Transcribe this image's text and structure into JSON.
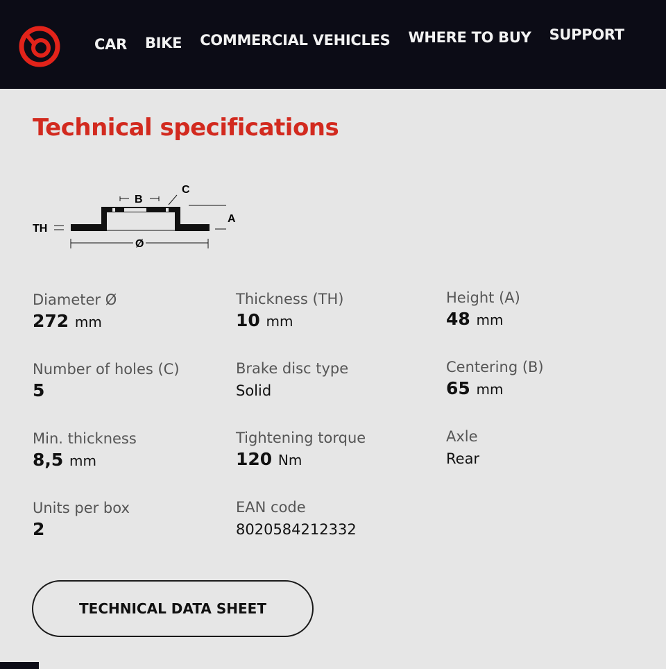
{
  "brand": {
    "name": "Brembo",
    "color": "#e2231a"
  },
  "nav": [
    {
      "label": "CAR"
    },
    {
      "label": "BIKE"
    },
    {
      "label": "COMMERCIAL VEHICLES"
    },
    {
      "label": "WHERE TO BUY"
    },
    {
      "label": "SUPPORT"
    }
  ],
  "title": "Technical specifications",
  "diagram": {
    "labels": {
      "b": "B",
      "c": "C",
      "a": "A",
      "th": "TH",
      "dia": "Ø"
    }
  },
  "specs": [
    {
      "label": "Diameter Ø",
      "value": "272",
      "unit": "mm"
    },
    {
      "label": "Thickness (TH)",
      "value": "10",
      "unit": "mm"
    },
    {
      "label": "Height (A)",
      "value": "48",
      "unit": "mm"
    },
    {
      "label": "Number of holes (C)",
      "value": "5",
      "unit": ""
    },
    {
      "label": "Brake disc type",
      "value": "Solid",
      "unit": ""
    },
    {
      "label": "Centering (B)",
      "value": "65",
      "unit": "mm"
    },
    {
      "label": "Min. thickness",
      "value": "8,5",
      "unit": "mm"
    },
    {
      "label": "Tightening torque",
      "value": "120",
      "unit": "Nm"
    },
    {
      "label": "Axle",
      "value": "Rear",
      "unit": ""
    },
    {
      "label": "Units per box",
      "value": "2",
      "unit": ""
    },
    {
      "label": "EAN code",
      "value": "8020584212332",
      "unit": ""
    }
  ],
  "button": {
    "label": "TECHNICAL DATA SHEET"
  }
}
